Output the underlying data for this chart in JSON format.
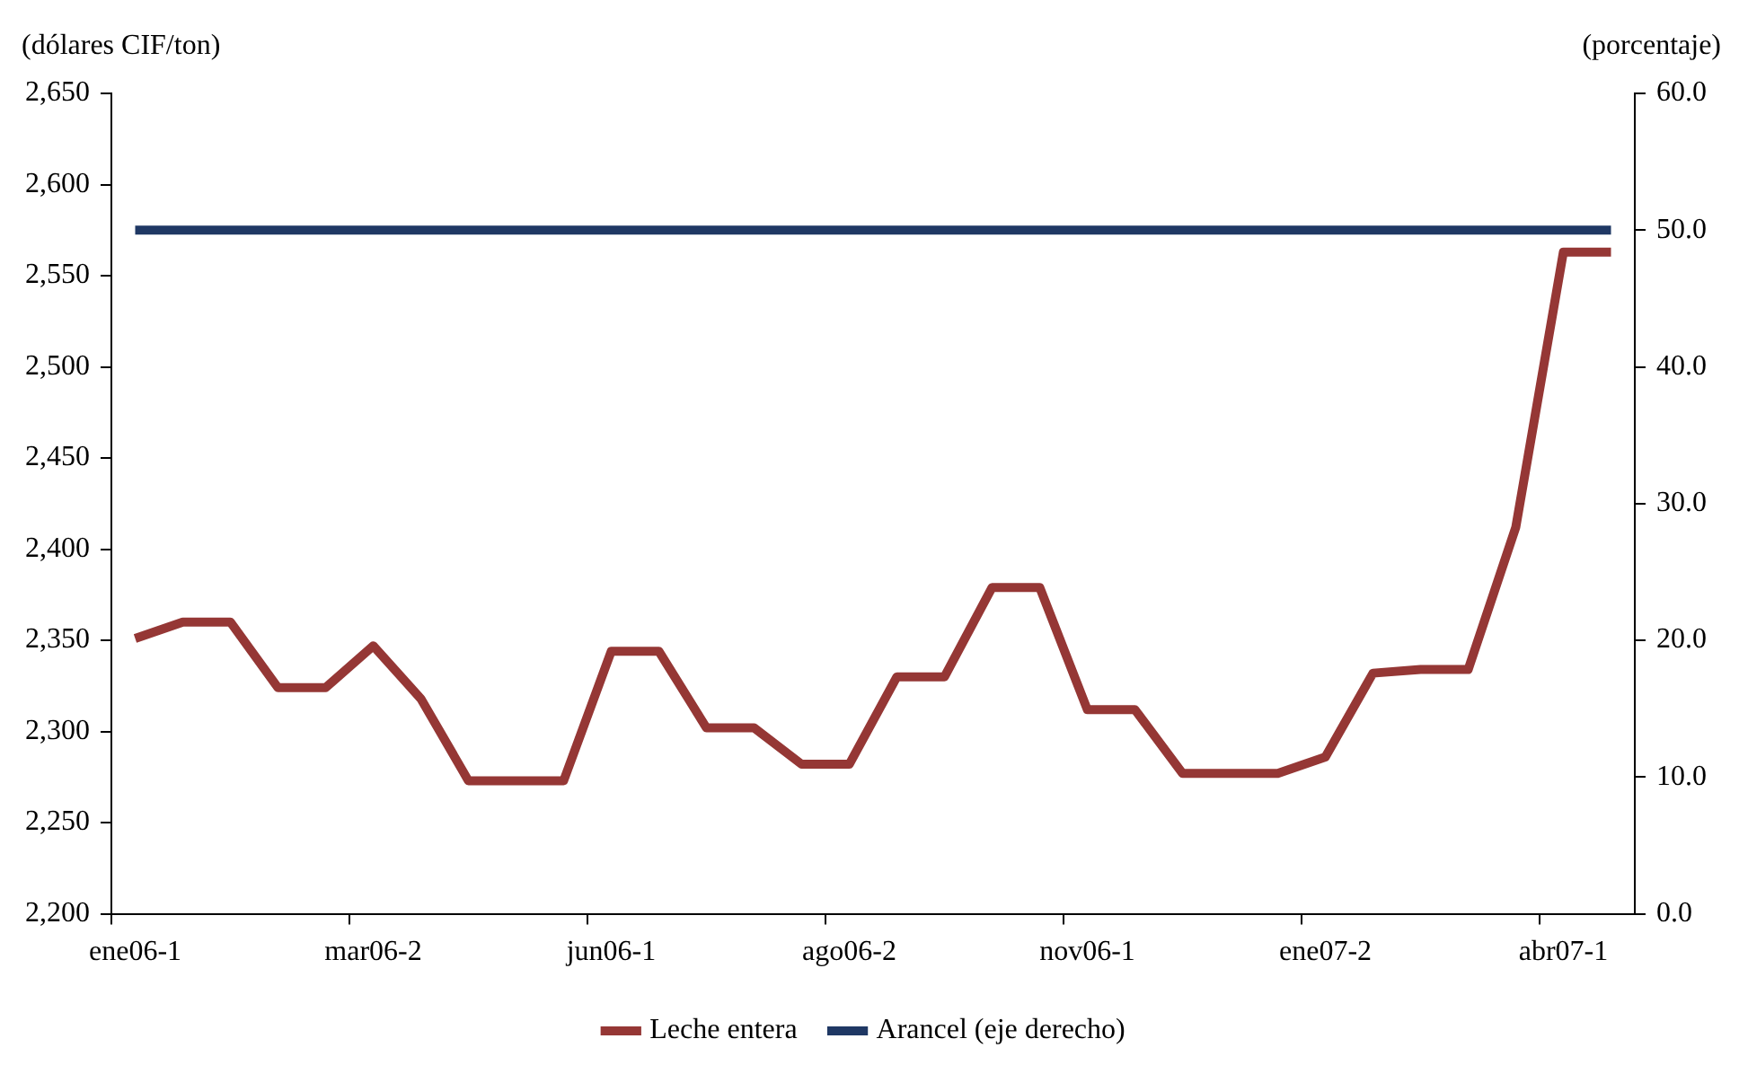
{
  "chart_data": {
    "type": "line",
    "ylabel": "(dólares CIF/ton)",
    "y2label": "(porcentaje)",
    "categories": [
      "ene06-1",
      null,
      null,
      null,
      null,
      "mar06-2",
      null,
      null,
      null,
      null,
      "jun06-1",
      null,
      null,
      null,
      null,
      "ago06-2",
      null,
      null,
      null,
      null,
      "nov06-1",
      null,
      null,
      null,
      null,
      "ene07-2",
      null,
      null,
      null,
      null,
      "abr07-1",
      null
    ],
    "series": [
      {
        "name": "Leche entera",
        "color": "#953735",
        "values": [
          2351,
          2360,
          2360,
          2324,
          2324,
          2347,
          2318,
          2273,
          2273,
          2273,
          2344,
          2344,
          2302,
          2302,
          2282,
          2282,
          2330,
          2330,
          2379,
          2379,
          2312,
          2312,
          2277,
          2277,
          2277,
          2286,
          2332,
          2334,
          2334,
          2412,
          2563,
          2563
        ]
      },
      {
        "name": "Arancel (eje derecho)",
        "color": "#1f3864",
        "axis": "y2",
        "values": [
          50,
          50,
          50,
          50,
          50,
          50,
          50,
          50,
          50,
          50,
          50,
          50,
          50,
          50,
          50,
          50,
          50,
          50,
          50,
          50,
          50,
          50,
          50,
          50,
          50,
          50,
          50,
          50,
          50,
          50,
          50,
          50
        ]
      }
    ],
    "ylim": [
      2200,
      2650
    ],
    "yticks": [
      {
        "value": 2200,
        "label": "2,200"
      },
      {
        "value": 2250,
        "label": "2,250"
      },
      {
        "value": 2300,
        "label": "2,300"
      },
      {
        "value": 2350,
        "label": "2,350"
      },
      {
        "value": 2400,
        "label": "2,400"
      },
      {
        "value": 2450,
        "label": "2,450"
      },
      {
        "value": 2500,
        "label": "2,500"
      },
      {
        "value": 2550,
        "label": "2,550"
      },
      {
        "value": 2600,
        "label": "2,600"
      },
      {
        "value": 2650,
        "label": "2,650"
      }
    ],
    "y2lim": [
      0,
      60
    ],
    "y2ticks": [
      {
        "value": 0,
        "label": "0.0"
      },
      {
        "value": 10,
        "label": "10.0"
      },
      {
        "value": 20,
        "label": "20.0"
      },
      {
        "value": 30,
        "label": "30.0"
      },
      {
        "value": 40,
        "label": "40.0"
      },
      {
        "value": 50,
        "label": "50.0"
      },
      {
        "value": 60,
        "label": "60.0"
      }
    ],
    "grid": false,
    "legend": "bottom",
    "marker": "none",
    "line_style": "solid"
  }
}
